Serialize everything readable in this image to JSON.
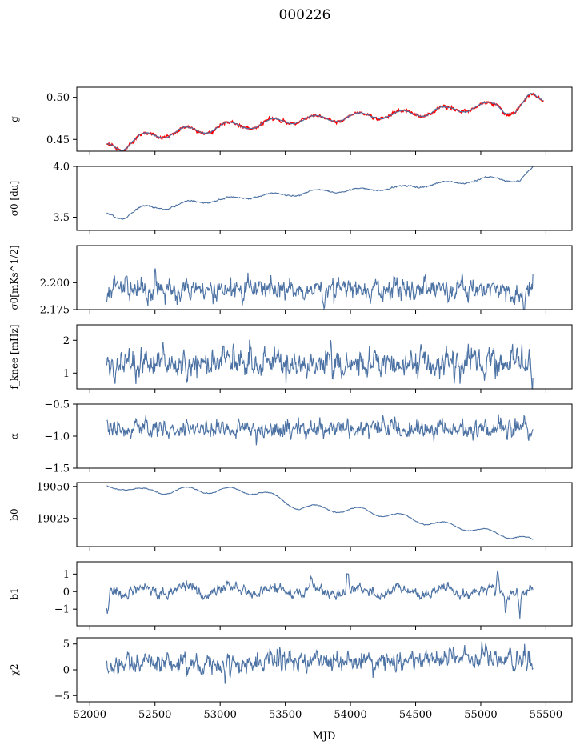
{
  "figure": {
    "title": "000226",
    "xlabel": "MJD"
  },
  "chart_data": [
    {
      "type": "line",
      "ylabel": "g",
      "ylim": [
        0.436,
        0.512
      ],
      "xlim": [
        51900,
        55700
      ],
      "yticks": [
        0.45,
        0.5
      ],
      "ytick_labels": [
        "0.45",
        "0.50"
      ],
      "xticks": [
        52000,
        52500,
        53000,
        53500,
        54000,
        54500,
        55000,
        55500
      ],
      "series": [
        {
          "color": "#ff0000",
          "trend": [
            [
              52130,
              0.442
            ],
            [
              52170,
              0.444
            ],
            [
              52250,
              0.441
            ],
            [
              52400,
              0.453
            ],
            [
              52550,
              0.456
            ],
            [
              52700,
              0.46
            ],
            [
              52850,
              0.46
            ],
            [
              53000,
              0.466
            ],
            [
              53150,
              0.466
            ],
            [
              53300,
              0.468
            ],
            [
              53450,
              0.471
            ],
            [
              53600,
              0.474
            ],
            [
              53750,
              0.474
            ],
            [
              53900,
              0.476
            ],
            [
              54050,
              0.477
            ],
            [
              54200,
              0.479
            ],
            [
              54350,
              0.479
            ],
            [
              54500,
              0.481
            ],
            [
              54650,
              0.484
            ],
            [
              54800,
              0.485
            ],
            [
              54950,
              0.489
            ],
            [
              55080,
              0.49
            ],
            [
              55130,
              0.49
            ],
            [
              55180,
              0.485
            ],
            [
              55260,
              0.484
            ],
            [
              55330,
              0.493
            ],
            [
              55380,
              0.5
            ],
            [
              55480,
              0.497
            ]
          ],
          "wave_amp": 0.0045,
          "wave_period": 330,
          "noise": 0.0008
        },
        {
          "color": "#4c72a4",
          "trend": [
            [
              52130,
              0.442
            ],
            [
              52170,
              0.444
            ],
            [
              52250,
              0.441
            ],
            [
              52400,
              0.453
            ],
            [
              52550,
              0.456
            ],
            [
              52700,
              0.46
            ],
            [
              52850,
              0.46
            ],
            [
              53000,
              0.466
            ],
            [
              53150,
              0.466
            ],
            [
              53300,
              0.468
            ],
            [
              53450,
              0.471
            ],
            [
              53600,
              0.474
            ],
            [
              53750,
              0.474
            ],
            [
              53900,
              0.476
            ],
            [
              54050,
              0.477
            ],
            [
              54200,
              0.479
            ],
            [
              54350,
              0.479
            ],
            [
              54500,
              0.481
            ],
            [
              54650,
              0.484
            ],
            [
              54800,
              0.485
            ],
            [
              54950,
              0.489
            ],
            [
              55080,
              0.49
            ],
            [
              55130,
              0.49
            ],
            [
              55180,
              0.485
            ],
            [
              55260,
              0.484
            ],
            [
              55330,
              0.493
            ],
            [
              55380,
              0.5
            ],
            [
              55480,
              0.497
            ]
          ],
          "wave_amp": 0.0045,
          "wave_period": 330,
          "noise": 0.0003
        }
      ]
    },
    {
      "type": "line",
      "ylabel": "σ0 [du]",
      "ylim": [
        3.37,
        4.0
      ],
      "xlim": [
        51900,
        55700
      ],
      "yticks": [
        3.5,
        4.0
      ],
      "ytick_labels": [
        "3.5",
        "4.0"
      ],
      "xticks": [
        52000,
        52500,
        53000,
        53500,
        54000,
        54500,
        55000,
        55500
      ],
      "series": [
        {
          "color": "#4c72a4",
          "trend": [
            [
              52130,
              3.53
            ],
            [
              52250,
              3.5
            ],
            [
              52400,
              3.59
            ],
            [
              52600,
              3.6
            ],
            [
              52800,
              3.65
            ],
            [
              53000,
              3.67
            ],
            [
              53200,
              3.7
            ],
            [
              53400,
              3.72
            ],
            [
              53600,
              3.73
            ],
            [
              53800,
              3.76
            ],
            [
              54000,
              3.76
            ],
            [
              54200,
              3.78
            ],
            [
              54400,
              3.79
            ],
            [
              54600,
              3.82
            ],
            [
              54800,
              3.84
            ],
            [
              55000,
              3.87
            ],
            [
              55150,
              3.88
            ],
            [
              55300,
              3.86
            ],
            [
              55400,
              3.97
            ]
          ],
          "wave_amp": 0.02,
          "wave_period": 330,
          "noise": 0.003
        }
      ]
    },
    {
      "type": "line",
      "ylabel": "σ0[mKs^1/2]",
      "ylim": [
        2.175,
        2.2345
      ],
      "xlim": [
        51900,
        55700
      ],
      "yticks": [
        2.175,
        2.2
      ],
      "ytick_labels": [
        "2.175",
        "2.200"
      ],
      "xticks": [
        52000,
        52500,
        53000,
        53500,
        54000,
        54500,
        55000,
        55500
      ],
      "series": [
        {
          "color": "#4c72a4",
          "trend": [
            [
              52130,
              2.193
            ],
            [
              55400,
              2.193
            ]
          ],
          "wave_amp": 0.0,
          "wave_period": 330,
          "noise": 0.0045,
          "spikes": [
            [
              53800,
              -0.014
            ],
            [
              55090,
              0.017
            ],
            [
              55330,
              -0.012
            ]
          ]
        }
      ]
    },
    {
      "type": "line",
      "ylabel": "f_knee [mHz]",
      "ylim": [
        0.52,
        2.47
      ],
      "xlim": [
        51900,
        55700
      ],
      "yticks": [
        1,
        2
      ],
      "ytick_labels": [
        "1",
        "2"
      ],
      "xticks": [
        52000,
        52500,
        53000,
        53500,
        54000,
        54500,
        55000,
        55500
      ],
      "series": [
        {
          "color": "#4c72a4",
          "trend": [
            [
              52130,
              1.3
            ],
            [
              55400,
              1.3
            ]
          ],
          "wave_amp": 0.0,
          "wave_period": 330,
          "noise": 0.19
        }
      ]
    },
    {
      "type": "line",
      "ylabel": "α",
      "ylim": [
        -1.5,
        -0.5
      ],
      "xlim": [
        51900,
        55700
      ],
      "yticks": [
        -1.5,
        -1.0,
        -0.5
      ],
      "ytick_labels": [
        "−1.5",
        "−1.0",
        "−0.5"
      ],
      "xticks": [
        52000,
        52500,
        53000,
        53500,
        54000,
        54500,
        55000,
        55500
      ],
      "series": [
        {
          "color": "#4c72a4",
          "trend": [
            [
              52130,
              -0.88
            ],
            [
              55400,
              -0.88
            ]
          ],
          "wave_amp": 0.0,
          "wave_period": 330,
          "noise": 0.065
        }
      ]
    },
    {
      "type": "line",
      "ylabel": "b0",
      "ylim": [
        19003,
        19053
      ],
      "xlim": [
        51900,
        55700
      ],
      "yticks": [
        19025,
        19050
      ],
      "ytick_labels": [
        "19025",
        "19050"
      ],
      "xticks": [
        52000,
        52500,
        53000,
        53500,
        54000,
        54500,
        55000,
        55500
      ],
      "series": [
        {
          "color": "#4c72a4",
          "trend": [
            [
              52130,
              19049
            ],
            [
              52250,
              19050
            ],
            [
              52400,
              19046
            ],
            [
              52700,
              19047
            ],
            [
              53000,
              19047
            ],
            [
              53300,
              19046
            ],
            [
              53450,
              19040
            ],
            [
              53600,
              19034
            ],
            [
              53750,
              19033
            ],
            [
              53900,
              19032
            ],
            [
              54100,
              19031
            ],
            [
              54300,
              19028
            ],
            [
              54500,
              19024
            ],
            [
              54700,
              19020
            ],
            [
              54900,
              19018
            ],
            [
              55100,
              19013
            ],
            [
              55300,
              19011
            ],
            [
              55400,
              19006
            ]
          ],
          "wave_amp": 2.5,
          "wave_period": 330,
          "noise": 0.15
        }
      ]
    },
    {
      "type": "line",
      "ylabel": "b1",
      "ylim": [
        -1.95,
        1.7
      ],
      "xlim": [
        51900,
        55700
      ],
      "yticks": [
        -1,
        0,
        1
      ],
      "ytick_labels": [
        "−1",
        "0",
        "1"
      ],
      "xticks": [
        52000,
        52500,
        53000,
        53500,
        54000,
        54500,
        55000,
        55500
      ],
      "series": [
        {
          "color": "#4c72a4",
          "trend": [
            [
              52130,
              0.1
            ],
            [
              53300,
              0.05
            ],
            [
              54500,
              0.0
            ],
            [
              55400,
              0.0
            ]
          ],
          "wave_amp": 0.22,
          "wave_period": 330,
          "noise": 0.13,
          "spikes": [
            [
              52135,
              -1.4
            ],
            [
              53700,
              0.8
            ],
            [
              53980,
              0.95
            ],
            [
              55130,
              1.55
            ],
            [
              55190,
              -1.0
            ],
            [
              55300,
              -1.6
            ]
          ]
        }
      ]
    },
    {
      "type": "line",
      "ylabel": "χ2",
      "ylim": [
        -6.2,
        6.2
      ],
      "xlim": [
        51900,
        55700
      ],
      "yticks": [
        -5,
        0,
        5
      ],
      "ytick_labels": [
        "−5",
        "0",
        "5"
      ],
      "xticks": [
        52000,
        52500,
        53000,
        53500,
        54000,
        54500,
        55000,
        55500
      ],
      "xtick_labels": [
        "52000",
        "52500",
        "53000",
        "53500",
        "54000",
        "54500",
        "55000",
        "55500"
      ],
      "series": [
        {
          "color": "#4c72a4",
          "trend": [
            [
              52130,
              1.0
            ],
            [
              53500,
              1.5
            ],
            [
              55400,
              2.2
            ]
          ],
          "wave_amp": 0.0,
          "wave_period": 330,
          "noise": 0.85
        }
      ]
    }
  ]
}
